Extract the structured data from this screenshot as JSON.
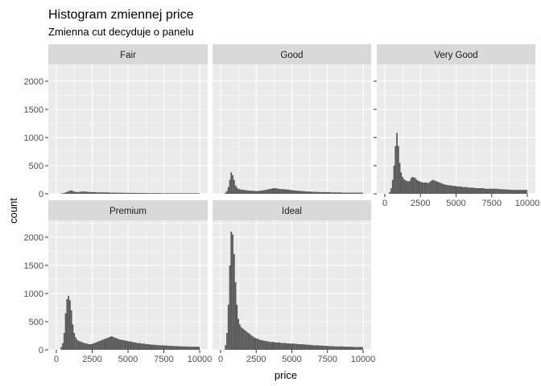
{
  "chart_data": {
    "type": "bar",
    "title": "Histogram zmiennej price",
    "subtitle": "Zmienna cut decyduje o panelu",
    "xlabel": "price",
    "ylabel": "count",
    "xlim": [
      0,
      10000
    ],
    "ylim": [
      0,
      2300
    ],
    "x_ticks": [
      0,
      2500,
      5000,
      7500,
      10000
    ],
    "y_ticks": [
      0,
      500,
      1000,
      1500,
      2000
    ],
    "bin_start": 300,
    "bin_width": 100,
    "grid": true,
    "facets": [
      {
        "name": "Fair",
        "values": [
          5,
          10,
          15,
          25,
          35,
          45,
          55,
          60,
          50,
          40,
          35,
          30,
          30,
          35,
          40,
          40,
          40,
          40,
          35,
          35,
          30,
          30,
          30,
          30,
          30,
          25,
          25,
          25,
          25,
          25,
          25,
          25,
          25,
          25,
          20,
          20,
          20,
          20,
          20,
          20,
          20,
          18,
          18,
          18,
          18,
          18,
          16,
          16,
          16,
          16,
          15,
          15,
          15,
          15,
          15,
          15,
          15,
          15,
          15,
          15,
          12,
          12,
          12,
          12,
          12,
          12,
          12,
          12,
          12,
          12,
          10,
          10,
          10,
          10,
          10,
          10,
          10,
          10,
          10,
          10,
          10,
          10,
          10,
          10,
          10,
          10,
          10,
          10,
          10,
          10,
          10,
          10,
          10,
          10,
          10,
          10,
          10
        ]
      },
      {
        "name": "Good",
        "values": [
          20,
          50,
          120,
          250,
          380,
          330,
          250,
          150,
          110,
          90,
          80,
          75,
          70,
          70,
          65,
          60,
          60,
          55,
          55,
          55,
          50,
          50,
          50,
          50,
          55,
          55,
          60,
          65,
          70,
          75,
          80,
          85,
          90,
          95,
          100,
          100,
          95,
          90,
          85,
          85,
          85,
          80,
          80,
          75,
          75,
          70,
          65,
          65,
          60,
          60,
          55,
          55,
          50,
          50,
          50,
          45,
          45,
          40,
          40,
          40,
          40,
          35,
          35,
          35,
          35,
          35,
          30,
          30,
          30,
          30,
          30,
          30,
          30,
          30,
          25,
          25,
          25,
          25,
          25,
          25,
          25,
          25,
          20,
          20,
          20,
          20,
          20,
          20,
          20,
          20,
          20,
          20,
          20,
          20,
          20,
          20,
          20
        ]
      },
      {
        "name": "Very Good",
        "values": [
          30,
          100,
          250,
          500,
          850,
          1080,
          850,
          550,
          380,
          300,
          260,
          240,
          230,
          220,
          230,
          280,
          300,
          290,
          280,
          250,
          230,
          220,
          210,
          200,
          200,
          200,
          200,
          190,
          210,
          230,
          250,
          240,
          230,
          220,
          210,
          200,
          190,
          180,
          170,
          160,
          160,
          150,
          150,
          150,
          140,
          140,
          140,
          130,
          130,
          130,
          130,
          120,
          120,
          120,
          120,
          110,
          110,
          110,
          110,
          110,
          100,
          100,
          100,
          100,
          100,
          100,
          100,
          90,
          90,
          90,
          90,
          90,
          90,
          90,
          90,
          90,
          85,
          85,
          80,
          80,
          80,
          80,
          75,
          75,
          75,
          70,
          70,
          70,
          70,
          70,
          70,
          70,
          70,
          70,
          70,
          70,
          70
        ]
      },
      {
        "name": "Premium",
        "values": [
          50,
          120,
          300,
          650,
          900,
          960,
          880,
          700,
          450,
          300,
          220,
          180,
          160,
          150,
          140,
          130,
          120,
          115,
          110,
          100,
          100,
          100,
          110,
          120,
          130,
          140,
          150,
          160,
          170,
          180,
          190,
          200,
          210,
          220,
          230,
          240,
          230,
          220,
          210,
          200,
          190,
          180,
          180,
          170,
          170,
          160,
          160,
          150,
          150,
          140,
          140,
          130,
          130,
          120,
          120,
          120,
          110,
          110,
          110,
          100,
          100,
          100,
          95,
          90,
          90,
          90,
          85,
          85,
          80,
          80,
          80,
          80,
          75,
          75,
          75,
          70,
          70,
          70,
          70,
          65,
          65,
          65,
          65,
          60,
          60,
          60,
          60,
          60,
          60,
          55,
          55,
          55,
          55,
          55,
          55,
          55,
          55
        ]
      },
      {
        "name": "Ideal",
        "values": [
          80,
          300,
          800,
          1500,
          2100,
          2050,
          1700,
          1200,
          800,
          550,
          450,
          400,
          380,
          360,
          340,
          320,
          300,
          280,
          260,
          240,
          220,
          210,
          200,
          190,
          180,
          170,
          170,
          160,
          160,
          150,
          150,
          140,
          140,
          140,
          140,
          130,
          130,
          130,
          130,
          120,
          120,
          120,
          120,
          115,
          115,
          110,
          110,
          110,
          110,
          105,
          105,
          100,
          100,
          100,
          100,
          95,
          95,
          90,
          90,
          90,
          85,
          85,
          80,
          80,
          80,
          80,
          75,
          75,
          75,
          70,
          70,
          70,
          70,
          65,
          65,
          65,
          65,
          60,
          60,
          60,
          60,
          60,
          60,
          55,
          55,
          55,
          55,
          55,
          55,
          55,
          50,
          50,
          50,
          50,
          50,
          50,
          50
        ]
      }
    ]
  }
}
